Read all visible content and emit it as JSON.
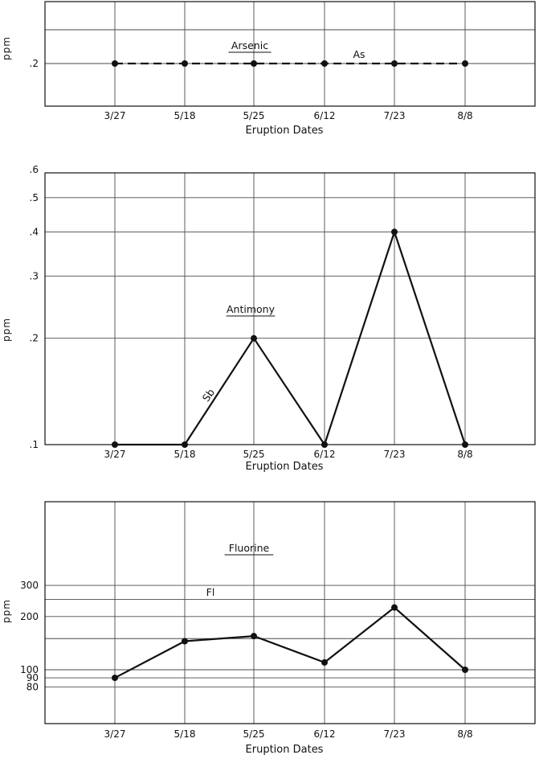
{
  "chart_data": [
    {
      "type": "line",
      "title": "Arsenic",
      "xlabel": "Eruption Dates",
      "ylabel": "ppm",
      "categories": [
        "3/27",
        "5/18",
        "5/25",
        "6/12",
        "7/23",
        "8/8"
      ],
      "yticks": [
        ".2"
      ],
      "grid": true,
      "line_style": "dashed",
      "series": [
        {
          "name": "As",
          "values": [
            0.2,
            0.2,
            0.2,
            0.2,
            0.2,
            0.2
          ]
        }
      ]
    },
    {
      "type": "line",
      "title": "Antimony",
      "xlabel": "Eruption Dates",
      "ylabel": "ppm",
      "scale": "log",
      "ylim": [
        0.1,
        0.6
      ],
      "categories": [
        "3/27",
        "5/18",
        "5/25",
        "6/12",
        "7/23",
        "8/8"
      ],
      "yticks": [
        ".1",
        ".2",
        ".3",
        ".4",
        ".5",
        ".6"
      ],
      "grid": true,
      "line_style": "solid",
      "series": [
        {
          "name": "Sb",
          "values": [
            0.1,
            0.1,
            0.2,
            0.1,
            0.4,
            0.1
          ]
        }
      ]
    },
    {
      "type": "line",
      "title": "Fluorine",
      "xlabel": "Eruption Dates",
      "ylabel": "ppm",
      "scale": "log",
      "ylim": [
        70,
        300
      ],
      "categories": [
        "3/27",
        "5/18",
        "5/25",
        "6/12",
        "7/23",
        "8/8"
      ],
      "yticks": [
        "80",
        "90",
        "100",
        "200",
        "300"
      ],
      "grid": true,
      "line_style": "solid",
      "series": [
        {
          "name": "Fl",
          "values": [
            90,
            145,
            155,
            110,
            225,
            100
          ]
        }
      ]
    }
  ]
}
